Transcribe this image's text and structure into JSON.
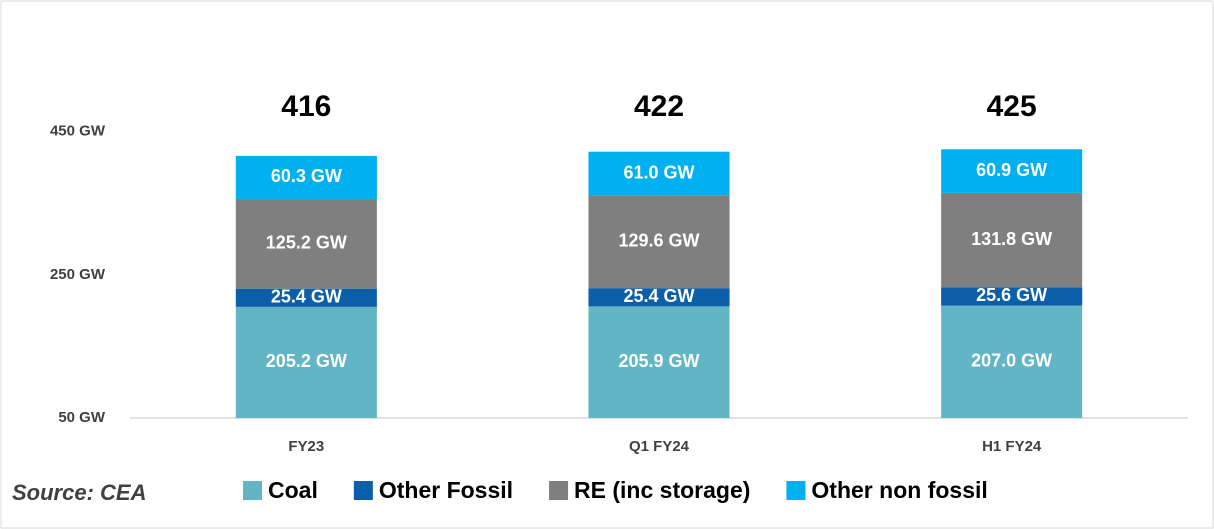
{
  "chart_data": {
    "type": "stacked_bar",
    "categories": [
      "FY23",
      "Q1 FY24",
      "H1 FY24"
    ],
    "series": [
      {
        "name": "Coal",
        "color": "#62b5c4",
        "values": [
          205.2,
          205.9,
          207.0
        ],
        "value_labels": [
          "205.2 GW",
          "205.9 GW",
          "207.0 GW"
        ]
      },
      {
        "name": "Other Fossil",
        "color": "#0b5ea8",
        "values": [
          25.4,
          25.4,
          25.6
        ],
        "value_labels": [
          "25.4 GW",
          "25.4 GW",
          "25.6 GW"
        ]
      },
      {
        "name": "RE (inc storage)",
        "color": "#7f7f7f",
        "values": [
          125.2,
          129.6,
          131.8
        ],
        "value_labels": [
          "125.2 GW",
          "129.6 GW",
          "131.8 GW"
        ]
      },
      {
        "name": "Other non fossil",
        "color": "#00b0f0",
        "values": [
          60.3,
          61.0,
          60.9
        ],
        "value_labels": [
          "60.3 GW",
          "61.0 GW",
          "60.9 GW"
        ]
      }
    ],
    "totals": [
      416,
      422,
      425
    ],
    "ylim": [
      50,
      550
    ],
    "yticks": [
      {
        "value": 50,
        "label": "50 GW"
      },
      {
        "value": 250,
        "label": "250 GW"
      },
      {
        "value": 450,
        "label": "450 GW"
      }
    ],
    "source": "Source: CEA",
    "grid": false
  }
}
